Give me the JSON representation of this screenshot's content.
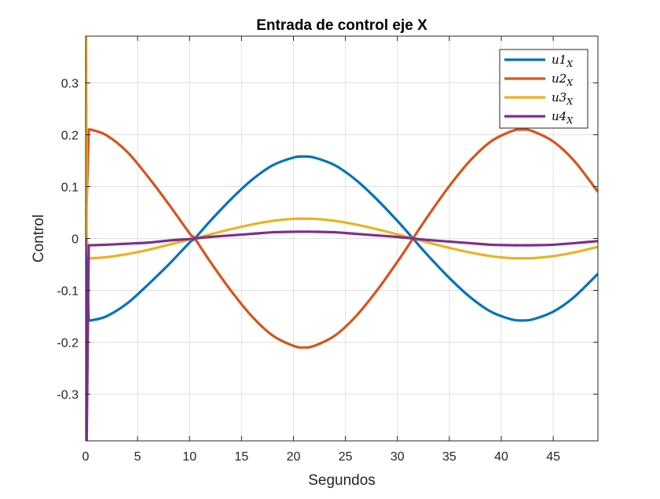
{
  "chart_data": {
    "type": "line",
    "title": "Entrada de control eje X",
    "xlabel": "Segundos",
    "ylabel": "Control",
    "xlim": [
      0,
      49.3
    ],
    "ylim": [
      -0.39,
      0.39
    ],
    "xticks": [
      0,
      5,
      10,
      15,
      20,
      25,
      30,
      35,
      40,
      45
    ],
    "yticks": [
      -0.3,
      -0.2,
      -0.1,
      0,
      0.1,
      0.2,
      0.3
    ],
    "ytick_labels": [
      "-0.3",
      "-0.2",
      "-0.1",
      "0",
      "0.1",
      "0.2",
      "0.3"
    ],
    "grid": true,
    "legend_position": "top-right",
    "x": [
      0.5,
      2,
      4,
      6,
      8,
      10,
      10.5,
      12,
      14,
      16,
      18,
      20,
      21,
      22,
      24,
      26,
      28,
      30,
      31.5,
      33,
      35,
      37,
      39,
      41,
      42,
      43,
      45,
      47,
      49.3
    ],
    "series": [
      {
        "name": "u1",
        "legend_sub": "X",
        "color": "#0072BD",
        "start": {
          "x": [
            0,
            0.3
          ],
          "y": [
            0,
            -0.158
          ]
        },
        "values": [
          -0.158,
          -0.15,
          -0.125,
          -0.089,
          -0.05,
          -0.008,
          0.0,
          0.034,
          0.076,
          0.113,
          0.141,
          0.156,
          0.158,
          0.156,
          0.141,
          0.113,
          0.076,
          0.034,
          0.0,
          -0.034,
          -0.076,
          -0.113,
          -0.141,
          -0.156,
          -0.158,
          -0.156,
          -0.141,
          -0.113,
          -0.068
        ]
      },
      {
        "name": "u2",
        "legend_sub": "X",
        "color": "#D95319",
        "start": {
          "x": [
            0,
            0.3
          ],
          "y": [
            0,
            0.21
          ]
        },
        "values": [
          0.21,
          0.199,
          0.167,
          0.119,
          0.066,
          0.01,
          0.0,
          -0.045,
          -0.101,
          -0.15,
          -0.187,
          -0.207,
          -0.21,
          -0.207,
          -0.187,
          -0.15,
          -0.101,
          -0.045,
          0.0,
          0.045,
          0.101,
          0.15,
          0.187,
          0.207,
          0.21,
          0.207,
          0.187,
          0.15,
          0.09
        ]
      },
      {
        "name": "u3",
        "legend_sub": "X",
        "color": "#EDB120",
        "start": {
          "x": [
            0,
            0.05,
            0.1,
            0.3
          ],
          "y": [
            0.39,
            0.39,
            0.0,
            -0.038
          ]
        },
        "values": [
          -0.038,
          -0.036,
          -0.03,
          -0.022,
          -0.012,
          -0.002,
          0.0,
          0.008,
          0.018,
          0.027,
          0.034,
          0.038,
          0.038,
          0.038,
          0.034,
          0.027,
          0.018,
          0.008,
          0.0,
          -0.008,
          -0.018,
          -0.027,
          -0.034,
          -0.038,
          -0.038,
          -0.038,
          -0.034,
          -0.027,
          -0.016
        ]
      },
      {
        "name": "u4",
        "legend_sub": "X",
        "color": "#7E2F8E",
        "start": {
          "x": [
            0,
            0.05,
            0.1,
            0.3
          ],
          "y": [
            0.0,
            -0.39,
            -0.39,
            -0.013
          ]
        },
        "values": [
          -0.013,
          -0.012,
          -0.01,
          -0.008,
          -0.004,
          -0.001,
          0.0,
          0.003,
          0.006,
          0.009,
          0.012,
          0.013,
          0.013,
          0.013,
          0.012,
          0.009,
          0.006,
          0.003,
          0.0,
          -0.003,
          -0.006,
          -0.009,
          -0.012,
          -0.013,
          -0.013,
          -0.013,
          -0.012,
          -0.009,
          -0.005
        ]
      }
    ]
  }
}
